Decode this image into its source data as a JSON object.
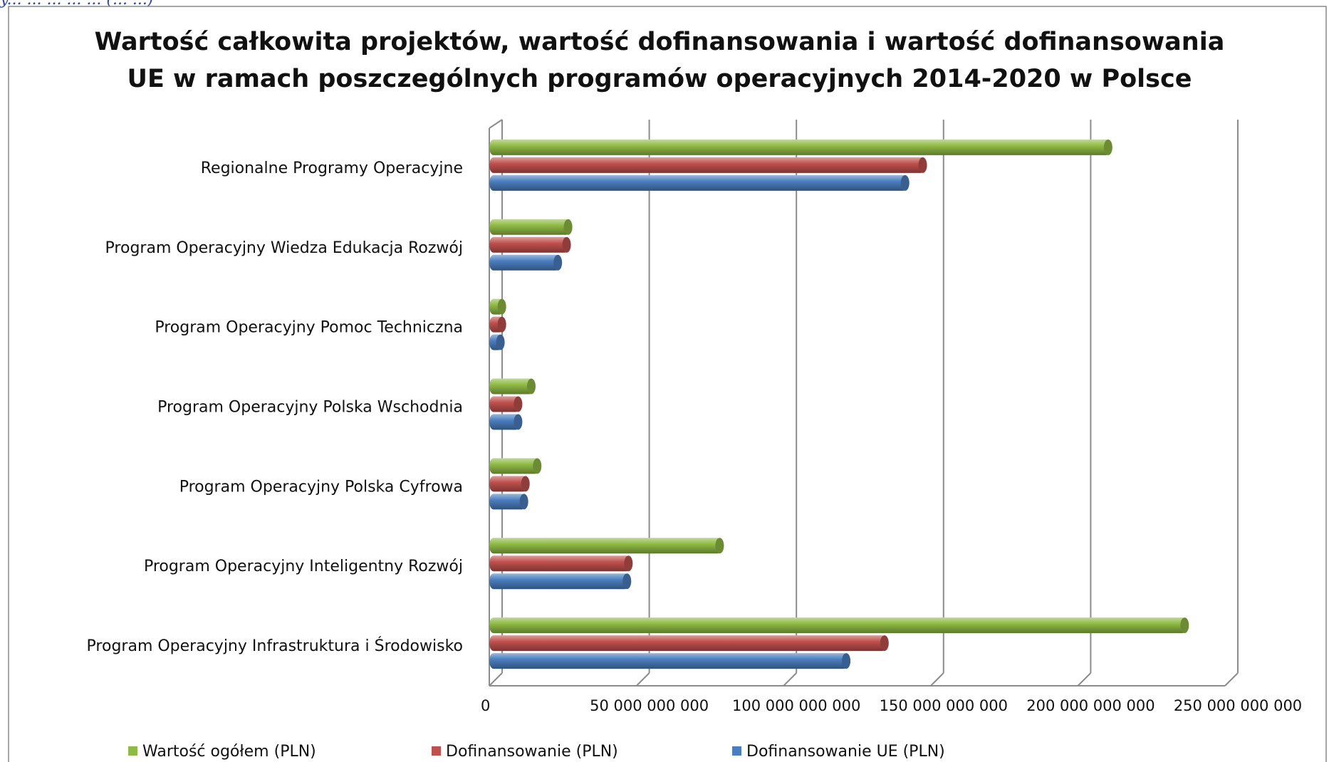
{
  "header_fragment": "y... ... ... ... ... (... ...)",
  "chart_data": {
    "type": "bar",
    "orientation": "horizontal",
    "style": "3d-cylinder",
    "title_lines": [
      "Wartość całkowita projektów, wartość dofinansowania i wartość dofinansowania",
      "UE w ramach poszczególnych programów operacyjnych 2014-2020 w Polsce"
    ],
    "categories": [
      "Regionalne Programy Operacyjne",
      "Program Operacyjny Wiedza Edukacja Rozwój",
      "Program Operacyjny Pomoc Techniczna",
      "Program Operacyjny Polska Wschodnia",
      "Program Operacyjny Polska Cyfrowa",
      "Program Operacyjny Inteligentny Rozwój",
      "Program Operacyjny Infrastruktura i Środowisko"
    ],
    "series": [
      {
        "name": "Wartość ogółem (PLN)",
        "color": "#8fba44",
        "values": [
          211000000000,
          27500000000,
          5000000000,
          15000000000,
          17000000000,
          79000000000,
          237000000000
        ]
      },
      {
        "name": "Dofinansowanie (PLN)",
        "color": "#c0504d",
        "values": [
          148000000000,
          27000000000,
          5000000000,
          10500000000,
          13000000000,
          48000000000,
          135000000000
        ]
      },
      {
        "name": "Dofinansowanie UE (PLN)",
        "color": "#4a7ebf",
        "values": [
          142000000000,
          24000000000,
          4500000000,
          10500000000,
          12500000000,
          47500000000,
          122000000000
        ]
      }
    ],
    "xticks": [
      "0",
      "50 000 000 000",
      "100 000 000 000",
      "150 000 000 000",
      "200 000 000 000",
      "250 000 000 000"
    ],
    "xlim": [
      0,
      250000000000
    ],
    "grid": true,
    "legend_position": "bottom"
  }
}
